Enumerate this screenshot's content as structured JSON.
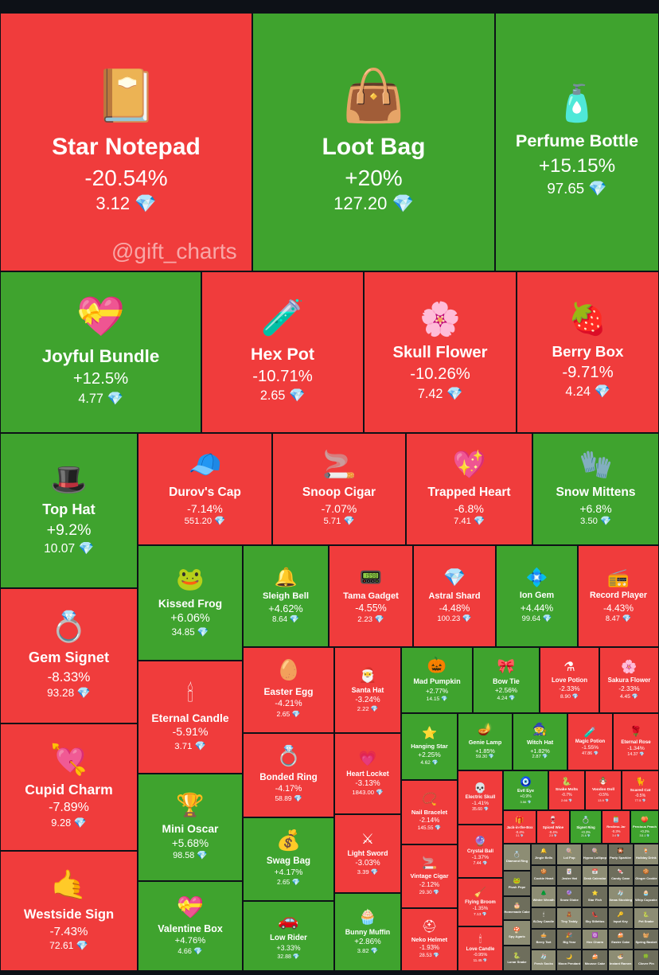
{
  "colors": {
    "up": "#3fa32e",
    "down": "#f03c3c",
    "background": "#0d1117"
  },
  "watermark": "@gift_charts",
  "currency_icon": "diamond-icon",
  "chart_data": {
    "type": "treemap",
    "items": [
      {
        "name": "Star Notepad",
        "change": "-20.54%",
        "price": "3.12",
        "icon": "📔"
      },
      {
        "name": "Loot Bag",
        "change": "+20%",
        "price": "127.20",
        "icon": "👜"
      },
      {
        "name": "Perfume Bottle",
        "change": "+15.15%",
        "price": "97.65",
        "icon": "🧴"
      },
      {
        "name": "Joyful Bundle",
        "change": "+12.5%",
        "price": "4.77",
        "icon": "💝"
      },
      {
        "name": "Hex Pot",
        "change": "-10.71%",
        "price": "2.65",
        "icon": "🧪"
      },
      {
        "name": "Skull Flower",
        "change": "-10.26%",
        "price": "7.42",
        "icon": "🌸"
      },
      {
        "name": "Berry Box",
        "change": "-9.71%",
        "price": "4.24",
        "icon": "🍓"
      },
      {
        "name": "Top Hat",
        "change": "+9.2%",
        "price": "10.07",
        "icon": "🎩"
      },
      {
        "name": "Durov's Cap",
        "change": "-7.14%",
        "price": "551.20",
        "icon": "🧢"
      },
      {
        "name": "Snoop Cigar",
        "change": "-7.07%",
        "price": "5.71",
        "icon": "🚬"
      },
      {
        "name": "Trapped Heart",
        "change": "-6.8%",
        "price": "7.41",
        "icon": "💖"
      },
      {
        "name": "Snow Mittens",
        "change": "+6.8%",
        "price": "3.50",
        "icon": "🧤"
      },
      {
        "name": "Kissed Frog",
        "change": "+6.06%",
        "price": "34.85",
        "icon": "🐸"
      },
      {
        "name": "Sleigh Bell",
        "change": "+4.62%",
        "price": "8.64",
        "icon": "🔔"
      },
      {
        "name": "Tama Gadget",
        "change": "-4.55%",
        "price": "2.23",
        "icon": "📟"
      },
      {
        "name": "Astral Shard",
        "change": "-4.48%",
        "price": "100.23",
        "icon": "💎"
      },
      {
        "name": "Ion Gem",
        "change": "+4.44%",
        "price": "99.64",
        "icon": "💠"
      },
      {
        "name": "Record Player",
        "change": "-4.43%",
        "price": "8.47",
        "icon": "📻"
      },
      {
        "name": "Gem Signet",
        "change": "-8.33%",
        "price": "93.28",
        "icon": "💍"
      },
      {
        "name": "Eternal Candle",
        "change": "-5.91%",
        "price": "3.71",
        "icon": "🕯"
      },
      {
        "name": "Easter Egg",
        "change": "-4.21%",
        "price": "2.65",
        "icon": "🥚"
      },
      {
        "name": "Santa Hat",
        "change": "-3.24%",
        "price": "2.22",
        "icon": "🎅"
      },
      {
        "name": "Mad Pumpkin",
        "change": "+2.77%",
        "price": "14.15",
        "icon": "🎃"
      },
      {
        "name": "Bow Tie",
        "change": "+2.56%",
        "price": "4.24",
        "icon": "🎀"
      },
      {
        "name": "Love Potion",
        "change": "-2.33%",
        "price": "8.90",
        "icon": "⚗"
      },
      {
        "name": "Sakura Flower",
        "change": "-2.33%",
        "price": "4.45",
        "icon": "🌸"
      },
      {
        "name": "Hanging Star",
        "change": "+2.25%",
        "price": "4.62",
        "icon": "⭐"
      },
      {
        "name": "Genie Lamp",
        "change": "+1.85%",
        "price": "59.30",
        "icon": "🪔"
      },
      {
        "name": "Witch Hat",
        "change": "+1.82%",
        "price": "2.87",
        "icon": "🧙"
      },
      {
        "name": "Magic Potion",
        "change": "-1.55%",
        "price": "47.86",
        "icon": "🧪"
      },
      {
        "name": "Eternal Rose",
        "change": "-1.34%",
        "price": "14.37",
        "icon": "🌹"
      },
      {
        "name": "Cupid Charm",
        "change": "-7.89%",
        "price": "9.28",
        "icon": "💘"
      },
      {
        "name": "Bonded Ring",
        "change": "-4.17%",
        "price": "58.89",
        "icon": "💍"
      },
      {
        "name": "Heart Locket",
        "change": "-3.13%",
        "price": "1843.00",
        "icon": "💗"
      },
      {
        "name": "Mini Oscar",
        "change": "+5.68%",
        "price": "98.58",
        "icon": "🏆"
      },
      {
        "name": "Swag Bag",
        "change": "+4.17%",
        "price": "2.65",
        "icon": "💰"
      },
      {
        "name": "Light Sword",
        "change": "-3.03%",
        "price": "3.39",
        "icon": "⚔"
      },
      {
        "name": "Westside Sign",
        "change": "-7.43%",
        "price": "72.61",
        "icon": "🤙"
      },
      {
        "name": "Valentine Box",
        "change": "+4.76%",
        "price": "4.66",
        "icon": "💝"
      },
      {
        "name": "Low Rider",
        "change": "+3.33%",
        "price": "32.88",
        "icon": "🚗"
      },
      {
        "name": "Bunny Muffin",
        "change": "+2.86%",
        "price": "3.82",
        "icon": "🧁"
      },
      {
        "name": "Nail Bracelet",
        "change": "-2.14%",
        "price": "145.55",
        "icon": "📿"
      },
      {
        "name": "Vintage Cigar",
        "change": "-2.12%",
        "price": "29.30",
        "icon": "🚬"
      },
      {
        "name": "Neko Helmet",
        "change": "-1.93%",
        "price": "28.53",
        "icon": "⛑"
      },
      {
        "name": "Electric Skull",
        "change": "-1.41%",
        "price": "35.60",
        "icon": "💀"
      },
      {
        "name": "Crystal Ball",
        "change": "-1.37%",
        "price": "7.44",
        "icon": "🔮"
      },
      {
        "name": "Flying Broom",
        "change": "-1.35%",
        "price": "7.13",
        "icon": "🧹"
      },
      {
        "name": "Love Candle",
        "change": "-0.95%",
        "price": "11.45",
        "icon": "🕯"
      },
      {
        "name": "Evil Eye",
        "change": "+0.9%",
        "price": "3.56",
        "icon": "🧿"
      },
      {
        "name": "Snake Molts",
        "change": "-0.7%",
        "price": "2.66",
        "icon": "🐍"
      },
      {
        "name": "Voodoo Doll",
        "change": "-0.5%",
        "price": "13.9",
        "icon": "🪆"
      },
      {
        "name": "Scared Cat",
        "change": "-0.5%",
        "price": "77.5",
        "icon": "🐈"
      },
      {
        "name": "Jack-in-the-Box",
        "change": "-0.4%",
        "price": "3.1",
        "icon": "🎁"
      },
      {
        "name": "Spiced Wine",
        "change": "-0.4%",
        "price": "2.5",
        "icon": "🍷"
      },
      {
        "name": "Signet Ring",
        "change": "+0.3%",
        "price": "21.6",
        "icon": "💍"
      },
      {
        "name": "Restless Jar",
        "change": "-0.3%",
        "price": "3.4",
        "icon": "🫙"
      },
      {
        "name": "Precious Peach",
        "change": "+0.2%",
        "price": "311.1",
        "icon": "🍑"
      },
      {
        "name": "Diamond Ring",
        "change": "",
        "price": "",
        "icon": "💍"
      },
      {
        "name": "Plush Pepe",
        "change": "",
        "price": "",
        "icon": "🐸"
      },
      {
        "name": "Homemade Cake",
        "change": "",
        "price": "",
        "icon": "🎂"
      },
      {
        "name": "Spy Agaric",
        "change": "",
        "price": "",
        "icon": "🍄"
      },
      {
        "name": "Lunar Snake",
        "change": "",
        "price": "",
        "icon": "🐍"
      },
      {
        "name": "Jingle Bells",
        "change": "",
        "price": "",
        "icon": "🔔"
      },
      {
        "name": "Lol Pop",
        "change": "",
        "price": "",
        "icon": "🍭"
      },
      {
        "name": "Hypno Lollipop",
        "change": "",
        "price": "",
        "icon": "🍭"
      },
      {
        "name": "Party Sparkler",
        "change": "",
        "price": "",
        "icon": "🎇"
      },
      {
        "name": "Holiday Drink",
        "change": "",
        "price": "",
        "icon": "🍹"
      },
      {
        "name": "Cookie Heart",
        "change": "",
        "price": "",
        "icon": "🍪"
      },
      {
        "name": "Jester Hat",
        "change": "",
        "price": "",
        "icon": "🃏"
      },
      {
        "name": "Desk Calendar",
        "change": "",
        "price": "",
        "icon": "📅"
      },
      {
        "name": "Candy Cane",
        "change": "",
        "price": "",
        "icon": "🍬"
      },
      {
        "name": "Ginger Cookie",
        "change": "",
        "price": "",
        "icon": "🍪"
      },
      {
        "name": "Winter Wreath",
        "change": "",
        "price": "",
        "icon": "🌲"
      },
      {
        "name": "Snow Globe",
        "change": "",
        "price": "",
        "icon": "🔮"
      },
      {
        "name": "Star Fish",
        "change": "",
        "price": "",
        "icon": "⭐"
      },
      {
        "name": "Xmas Stocking",
        "change": "",
        "price": "",
        "icon": "🧦"
      },
      {
        "name": "Whip Cupcake",
        "change": "",
        "price": "",
        "icon": "🧁"
      },
      {
        "name": "B-Day Candle",
        "change": "",
        "price": "",
        "icon": "🕯"
      },
      {
        "name": "Tiny Teddy",
        "change": "",
        "price": "",
        "icon": "🧸"
      },
      {
        "name": "Sky Stilettos",
        "change": "",
        "price": "",
        "icon": "👠"
      },
      {
        "name": "Input Key",
        "change": "",
        "price": "",
        "icon": "🔑"
      },
      {
        "name": "Pet Snake",
        "change": "",
        "price": "",
        "icon": "🐍"
      },
      {
        "name": "Berry Tart",
        "change": "",
        "price": "",
        "icon": "🥧"
      },
      {
        "name": "Big Year",
        "change": "",
        "price": "",
        "icon": "🎉"
      },
      {
        "name": "Hex Charm",
        "change": "",
        "price": "",
        "icon": "🔯"
      },
      {
        "name": "Easter Cake",
        "change": "",
        "price": "",
        "icon": "🍰"
      },
      {
        "name": "Spring Basket",
        "change": "",
        "price": "",
        "icon": "🧺"
      },
      {
        "name": "Fresh Socks",
        "change": "",
        "price": "",
        "icon": "🧦"
      },
      {
        "name": "Moon Pendant",
        "change": "",
        "price": "",
        "icon": "🌙"
      },
      {
        "name": "Mousse Cake",
        "change": "",
        "price": "",
        "icon": "🍰"
      },
      {
        "name": "Instant Ramen",
        "change": "",
        "price": "",
        "icon": "🍜"
      },
      {
        "name": "Clover Pin",
        "change": "",
        "price": "",
        "icon": "🍀"
      },
      {
        "name": "Cupid Wings",
        "change": "",
        "price": "",
        "icon": "🪽"
      },
      {
        "name": "Jolly Chimp",
        "change": "",
        "price": "",
        "icon": "🐒"
      },
      {
        "name": "Love Letter",
        "change": "",
        "price": "",
        "icon": "💌"
      },
      {
        "name": "Pretty Posy",
        "change": "",
        "price": "",
        "icon": "💐"
      },
      {
        "name": "Faith Amulet",
        "change": "",
        "price": "",
        "icon": "🧿"
      },
      {
        "name": "Bling Binky",
        "change": "",
        "price": "",
        "icon": "🍼"
      },
      {
        "name": "Money Pot",
        "change": "",
        "price": "",
        "icon": "🪴"
      },
      {
        "name": "Toy Bear",
        "change": "",
        "price": "",
        "icon": "🧸"
      },
      {
        "name": "Ice Cream",
        "change": "",
        "price": "",
        "icon": "🍦"
      },
      {
        "name": "Joker Ring",
        "change": "",
        "price": "",
        "icon": "💍"
      },
      {
        "name": "Chill Flame",
        "change": "",
        "price": "",
        "icon": "🔥"
      },
      {
        "name": "Victory Medal",
        "change": "",
        "price": "",
        "icon": "🏅"
      },
      {
        "name": "Rare Bird",
        "change": "",
        "price": "",
        "icon": "🐦"
      },
      {
        "name": "Swiss Watch",
        "change": "",
        "price": "",
        "icon": "⌚"
      },
      {
        "name": "Kitty Medal",
        "change": "",
        "price": "",
        "icon": "🏅"
      },
      {
        "name": "Lush Bouquet",
        "change": "",
        "price": "",
        "icon": "💐"
      },
      {
        "name": "Spring Crate",
        "change": "",
        "price": "",
        "icon": "📦"
      },
      {
        "name": "Pool Float",
        "change": "",
        "price": "",
        "icon": "🛟"
      },
      {
        "name": "Sweet Sunday",
        "change": "",
        "price": "",
        "icon": "🍨"
      },
      {
        "name": "Heroic Helmet",
        "change": "",
        "price": "",
        "icon": "⛑"
      }
    ]
  }
}
